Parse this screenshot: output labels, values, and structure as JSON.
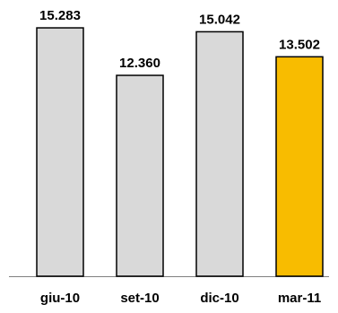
{
  "chart_data": {
    "type": "bar",
    "categories": [
      "giu-10",
      "set-10",
      "dic-10",
      "mar-11"
    ],
    "values": [
      15.283,
      12.36,
      15.042,
      13.502
    ],
    "value_labels": [
      "15.283",
      "12.360",
      "15.042",
      "13.502"
    ],
    "title": "",
    "xlabel": "",
    "ylabel": "",
    "ylim": [
      0,
      16.5
    ],
    "grid": false,
    "legend": "none",
    "colors": {
      "default_bar": "#d9d9d9",
      "highlight_bar": "#f8bc00",
      "bar_outline": "#000000",
      "axis": "#808080"
    },
    "highlight_index": 3
  }
}
